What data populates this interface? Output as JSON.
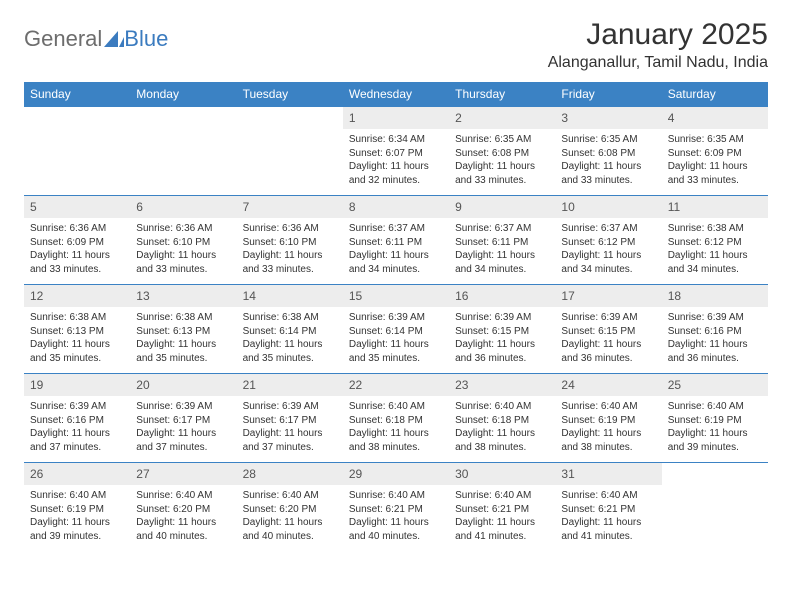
{
  "brand": {
    "part1": "General",
    "part2": "Blue",
    "color1": "#6d6d6d",
    "color2": "#3b7bbf",
    "icon_color": "#3b7bbf"
  },
  "title": "January 2025",
  "location": "Alanganallur, Tamil Nadu, India",
  "colors": {
    "header_bg": "#3b82c4",
    "header_text": "#ffffff",
    "date_bg": "#ededed",
    "row_border": "#3b82c4",
    "body_text": "#333333",
    "title_text": "#333333"
  },
  "fonts": {
    "title_size": 30,
    "location_size": 16,
    "dayheader_size": 12,
    "datenum_size": 12,
    "body_size": 10
  },
  "day_labels": [
    "Sunday",
    "Monday",
    "Tuesday",
    "Wednesday",
    "Thursday",
    "Friday",
    "Saturday"
  ],
  "weeks": [
    [
      {
        "empty": true
      },
      {
        "empty": true
      },
      {
        "empty": true
      },
      {
        "date": "1",
        "sunrise": "Sunrise: 6:34 AM",
        "sunset": "Sunset: 6:07 PM",
        "daylight": "Daylight: 11 hours and 32 minutes."
      },
      {
        "date": "2",
        "sunrise": "Sunrise: 6:35 AM",
        "sunset": "Sunset: 6:08 PM",
        "daylight": "Daylight: 11 hours and 33 minutes."
      },
      {
        "date": "3",
        "sunrise": "Sunrise: 6:35 AM",
        "sunset": "Sunset: 6:08 PM",
        "daylight": "Daylight: 11 hours and 33 minutes."
      },
      {
        "date": "4",
        "sunrise": "Sunrise: 6:35 AM",
        "sunset": "Sunset: 6:09 PM",
        "daylight": "Daylight: 11 hours and 33 minutes."
      }
    ],
    [
      {
        "date": "5",
        "sunrise": "Sunrise: 6:36 AM",
        "sunset": "Sunset: 6:09 PM",
        "daylight": "Daylight: 11 hours and 33 minutes."
      },
      {
        "date": "6",
        "sunrise": "Sunrise: 6:36 AM",
        "sunset": "Sunset: 6:10 PM",
        "daylight": "Daylight: 11 hours and 33 minutes."
      },
      {
        "date": "7",
        "sunrise": "Sunrise: 6:36 AM",
        "sunset": "Sunset: 6:10 PM",
        "daylight": "Daylight: 11 hours and 33 minutes."
      },
      {
        "date": "8",
        "sunrise": "Sunrise: 6:37 AM",
        "sunset": "Sunset: 6:11 PM",
        "daylight": "Daylight: 11 hours and 34 minutes."
      },
      {
        "date": "9",
        "sunrise": "Sunrise: 6:37 AM",
        "sunset": "Sunset: 6:11 PM",
        "daylight": "Daylight: 11 hours and 34 minutes."
      },
      {
        "date": "10",
        "sunrise": "Sunrise: 6:37 AM",
        "sunset": "Sunset: 6:12 PM",
        "daylight": "Daylight: 11 hours and 34 minutes."
      },
      {
        "date": "11",
        "sunrise": "Sunrise: 6:38 AM",
        "sunset": "Sunset: 6:12 PM",
        "daylight": "Daylight: 11 hours and 34 minutes."
      }
    ],
    [
      {
        "date": "12",
        "sunrise": "Sunrise: 6:38 AM",
        "sunset": "Sunset: 6:13 PM",
        "daylight": "Daylight: 11 hours and 35 minutes."
      },
      {
        "date": "13",
        "sunrise": "Sunrise: 6:38 AM",
        "sunset": "Sunset: 6:13 PM",
        "daylight": "Daylight: 11 hours and 35 minutes."
      },
      {
        "date": "14",
        "sunrise": "Sunrise: 6:38 AM",
        "sunset": "Sunset: 6:14 PM",
        "daylight": "Daylight: 11 hours and 35 minutes."
      },
      {
        "date": "15",
        "sunrise": "Sunrise: 6:39 AM",
        "sunset": "Sunset: 6:14 PM",
        "daylight": "Daylight: 11 hours and 35 minutes."
      },
      {
        "date": "16",
        "sunrise": "Sunrise: 6:39 AM",
        "sunset": "Sunset: 6:15 PM",
        "daylight": "Daylight: 11 hours and 36 minutes."
      },
      {
        "date": "17",
        "sunrise": "Sunrise: 6:39 AM",
        "sunset": "Sunset: 6:15 PM",
        "daylight": "Daylight: 11 hours and 36 minutes."
      },
      {
        "date": "18",
        "sunrise": "Sunrise: 6:39 AM",
        "sunset": "Sunset: 6:16 PM",
        "daylight": "Daylight: 11 hours and 36 minutes."
      }
    ],
    [
      {
        "date": "19",
        "sunrise": "Sunrise: 6:39 AM",
        "sunset": "Sunset: 6:16 PM",
        "daylight": "Daylight: 11 hours and 37 minutes."
      },
      {
        "date": "20",
        "sunrise": "Sunrise: 6:39 AM",
        "sunset": "Sunset: 6:17 PM",
        "daylight": "Daylight: 11 hours and 37 minutes."
      },
      {
        "date": "21",
        "sunrise": "Sunrise: 6:39 AM",
        "sunset": "Sunset: 6:17 PM",
        "daylight": "Daylight: 11 hours and 37 minutes."
      },
      {
        "date": "22",
        "sunrise": "Sunrise: 6:40 AM",
        "sunset": "Sunset: 6:18 PM",
        "daylight": "Daylight: 11 hours and 38 minutes."
      },
      {
        "date": "23",
        "sunrise": "Sunrise: 6:40 AM",
        "sunset": "Sunset: 6:18 PM",
        "daylight": "Daylight: 11 hours and 38 minutes."
      },
      {
        "date": "24",
        "sunrise": "Sunrise: 6:40 AM",
        "sunset": "Sunset: 6:19 PM",
        "daylight": "Daylight: 11 hours and 38 minutes."
      },
      {
        "date": "25",
        "sunrise": "Sunrise: 6:40 AM",
        "sunset": "Sunset: 6:19 PM",
        "daylight": "Daylight: 11 hours and 39 minutes."
      }
    ],
    [
      {
        "date": "26",
        "sunrise": "Sunrise: 6:40 AM",
        "sunset": "Sunset: 6:19 PM",
        "daylight": "Daylight: 11 hours and 39 minutes."
      },
      {
        "date": "27",
        "sunrise": "Sunrise: 6:40 AM",
        "sunset": "Sunset: 6:20 PM",
        "daylight": "Daylight: 11 hours and 40 minutes."
      },
      {
        "date": "28",
        "sunrise": "Sunrise: 6:40 AM",
        "sunset": "Sunset: 6:20 PM",
        "daylight": "Daylight: 11 hours and 40 minutes."
      },
      {
        "date": "29",
        "sunrise": "Sunrise: 6:40 AM",
        "sunset": "Sunset: 6:21 PM",
        "daylight": "Daylight: 11 hours and 40 minutes."
      },
      {
        "date": "30",
        "sunrise": "Sunrise: 6:40 AM",
        "sunset": "Sunset: 6:21 PM",
        "daylight": "Daylight: 11 hours and 41 minutes."
      },
      {
        "date": "31",
        "sunrise": "Sunrise: 6:40 AM",
        "sunset": "Sunset: 6:21 PM",
        "daylight": "Daylight: 11 hours and 41 minutes."
      },
      {
        "empty": true
      }
    ]
  ]
}
